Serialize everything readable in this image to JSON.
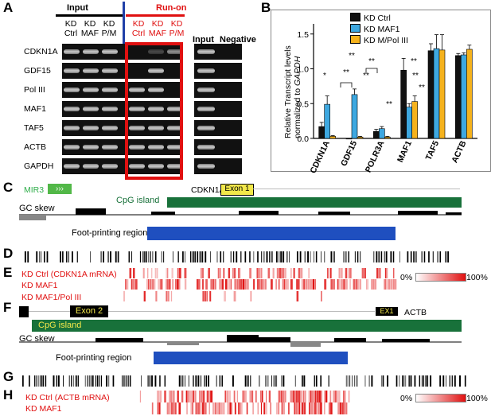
{
  "panels": {
    "A": "A",
    "B": "B",
    "C": "C",
    "D": "D",
    "E": "E",
    "F": "F",
    "G": "G",
    "H": "H"
  },
  "panelA": {
    "input_header": "Input",
    "runon_header": "Run-on",
    "col_labels": [
      [
        "KD",
        "Ctrl"
      ],
      [
        "KD",
        "MAF"
      ],
      [
        "KD",
        "P/M"
      ],
      [
        "KD",
        "Ctrl"
      ],
      [
        "KD",
        "MAF"
      ],
      [
        "KD",
        "P/M"
      ]
    ],
    "right_labels": [
      "Input",
      "Negative"
    ],
    "genes": [
      "CDKN1A",
      "GDF15",
      "Pol III",
      "MAF1",
      "TAF5",
      "ACTB",
      "GAPDH"
    ]
  },
  "panelB": {
    "legend": [
      "KD Ctrl",
      "KD MAF1",
      "KD M/Pol III"
    ],
    "ylabel_line1": "Relative Transcript levels",
    "ylabel_line2_prefix": "normalized to ",
    "ylabel_line2_italic": "GAPDH",
    "yticks": [
      "0.0",
      "0.5",
      "1.0",
      "1.5"
    ],
    "sig": [
      "*",
      "**",
      "**",
      "**",
      "**",
      "**",
      "**",
      "**",
      "**"
    ]
  },
  "chart_data": {
    "type": "bar",
    "categories": [
      "CDKN1A",
      "GDF15",
      "POLR3A",
      "MAF1",
      "TAF5",
      "ACTB"
    ],
    "series": [
      {
        "name": "KD Ctrl",
        "values": [
          0.17,
          0.0,
          0.1,
          0.98,
          1.26,
          1.19
        ],
        "err": [
          0.06,
          0.0,
          0.03,
          0.17,
          0.1,
          0.03
        ],
        "color": "#111111"
      },
      {
        "name": "KD MAF1",
        "values": [
          0.49,
          0.63,
          0.14,
          0.45,
          1.29,
          1.2
        ],
        "err": [
          0.12,
          0.08,
          0.03,
          0.05,
          0.2,
          0.03
        ],
        "color": "#3ea8e0"
      },
      {
        "name": "KD M/Pol III",
        "values": [
          0.03,
          0.02,
          0.02,
          0.53,
          1.27,
          1.28
        ],
        "err": [
          0.01,
          0.01,
          0.01,
          0.08,
          0.22,
          0.06
        ],
        "color": "#f5b21c"
      }
    ],
    "ylabel": "Relative Transcript levels normalized to GAPDH",
    "ylim": [
      0,
      1.6
    ]
  },
  "panelC": {
    "mir3": "MIR3",
    "gene": "CDKN1A",
    "exon": "Exon 1",
    "cpg": "CpG island",
    "gcskew": "GC skew",
    "footprint": "Foot-printing region"
  },
  "panelE": {
    "rows": [
      "KD Ctrl (CDKN1A mRNA)",
      "KD MAF1",
      "KD MAF1/Pol III"
    ],
    "scale_min": "0%",
    "scale_max": "100%"
  },
  "panelF": {
    "exon2": "Exon 2",
    "ex1": "EX1",
    "gene": "ACTB",
    "cpg": "CpG island",
    "gcskew": "GC skew",
    "footprint": "Foot-printing region"
  },
  "panelH": {
    "rows": [
      "KD Ctrl (ACTB mRNA)",
      "KD MAF1"
    ],
    "scale_min": "0%",
    "scale_max": "100%"
  },
  "colors": {
    "accent_red": "#e01010",
    "dark_green": "#18713a",
    "blue": "#1f4fbf",
    "exon_yellow": "#f2e84a"
  }
}
